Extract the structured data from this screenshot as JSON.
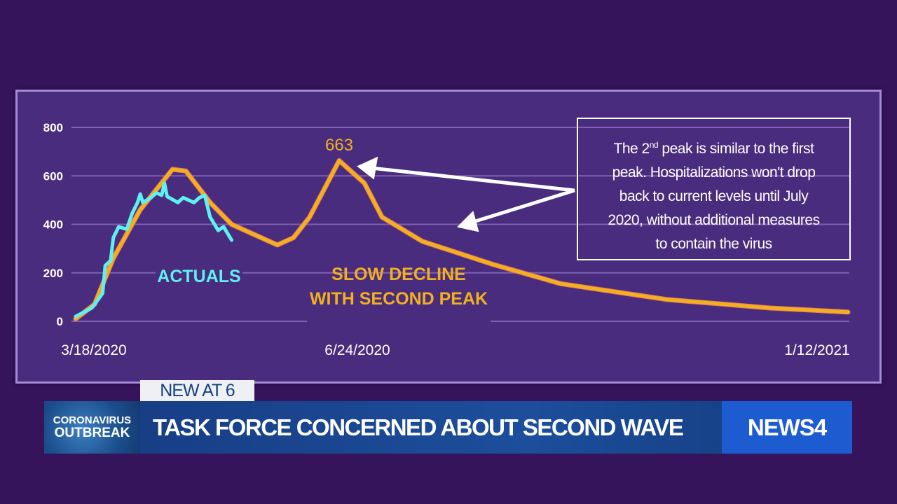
{
  "chart_data": {
    "type": "line",
    "title": "",
    "xlabel": "",
    "ylabel": "",
    "x_unit": "days since 3/18/2020",
    "xlim": [
      0,
      300
    ],
    "ylim": [
      0,
      800
    ],
    "yticks": [
      0,
      200,
      400,
      600,
      800
    ],
    "xticks": [
      {
        "day": 0,
        "label": "3/18/2020"
      },
      {
        "day": 98,
        "label": "6/24/2020"
      },
      {
        "day": 300,
        "label": "1/12/2021"
      }
    ],
    "grid": true,
    "series": [
      {
        "name": "SLOW DECLINE WITH SECOND PEAK",
        "color": "#f2b01e",
        "x": [
          0,
          7,
          14,
          24,
          36,
          41,
          50,
          58,
          75,
          81,
          87,
          98,
          108,
          115,
          131,
          159,
          186,
          228,
          269,
          300
        ],
        "y": [
          10,
          70,
          260,
          460,
          627,
          620,
          490,
          400,
          315,
          345,
          430,
          663,
          570,
          430,
          330,
          235,
          155,
          90,
          55,
          38
        ]
      },
      {
        "name": "ACTUALS",
        "color": "#5ff0f0",
        "x": [
          0,
          6,
          10,
          11,
          13,
          14,
          16,
          19,
          21,
          23,
          24,
          25,
          28,
          30,
          32,
          33,
          34,
          38,
          40,
          44,
          46,
          48,
          50,
          53,
          55,
          58
        ],
        "y": [
          20,
          55,
          115,
          230,
          250,
          345,
          390,
          380,
          445,
          490,
          525,
          490,
          510,
          530,
          520,
          570,
          515,
          490,
          510,
          490,
          510,
          520,
          430,
          375,
          390,
          335
        ]
      }
    ],
    "annotations": {
      "peak_value": "663",
      "actuals_label": "ACTUALS",
      "projection_label_line1": "SLOW DECLINE",
      "projection_label_line2": "WITH SECOND PEAK",
      "note_line1_pre": "The 2",
      "note_sup": "nd",
      "note_line1_post": " peak is similar to the first",
      "note_line2": "peak. Hospitalizations won't drop",
      "note_line3": "back to current levels until July",
      "note_line4": "2020, without additional measures",
      "note_line5": "to contain the virus"
    }
  },
  "lower_third": {
    "tag": "NEW AT 6",
    "section_line1": "CORONAVIRUS",
    "section_line2": "OUTBREAK",
    "headline": "TASK FORCE CONCERNED ABOUT SECOND WAVE",
    "station": "NEWS4"
  }
}
